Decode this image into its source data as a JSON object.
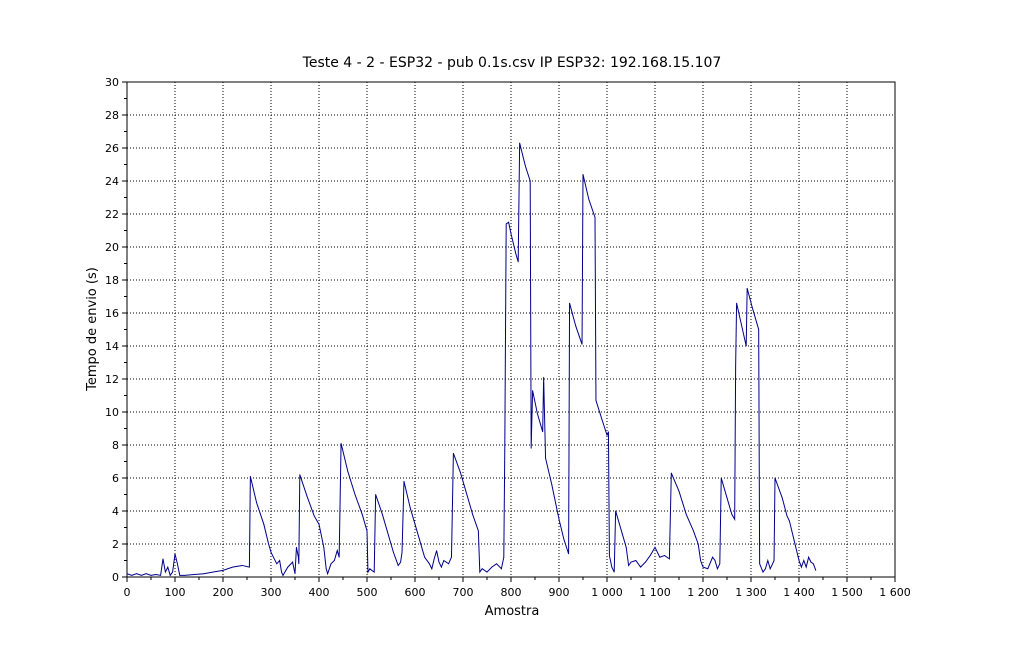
{
  "chart_data": {
    "type": "line",
    "title": "Teste 4 - 2 - ESP32 - pub 0.1s.csv IP ESP32: 192.168.15.107",
    "xlabel": "Amostra",
    "ylabel": "Tempo de envio (s)",
    "xlim": [
      0,
      1600
    ],
    "ylim": [
      0,
      30
    ],
    "x_ticks": [
      0,
      100,
      200,
      300,
      400,
      500,
      600,
      700,
      800,
      900,
      1000,
      1100,
      1200,
      1300,
      1400,
      1500,
      1600
    ],
    "x_tick_labels": [
      "0",
      "100",
      "200",
      "300",
      "400",
      "500",
      "600",
      "700",
      "800",
      "900",
      "1 000",
      "1 100",
      "1 200",
      "1 300",
      "1 400",
      "1 500",
      "1 600"
    ],
    "y_ticks": [
      0,
      2,
      4,
      6,
      8,
      10,
      12,
      14,
      16,
      18,
      20,
      22,
      24,
      26,
      28,
      30
    ],
    "grid": true,
    "line_color": "#00008b",
    "series": [
      {
        "points": [
          [
            0,
            0.2
          ],
          [
            10,
            0.1
          ],
          [
            20,
            0.2
          ],
          [
            30,
            0.1
          ],
          [
            40,
            0.2
          ],
          [
            50,
            0.1
          ],
          [
            60,
            0.15
          ],
          [
            70,
            0.1
          ],
          [
            75,
            1.1
          ],
          [
            80,
            0.3
          ],
          [
            85,
            0.6
          ],
          [
            90,
            0.1
          ],
          [
            95,
            0.3
          ],
          [
            100,
            1.4
          ],
          [
            105,
            0.8
          ],
          [
            110,
            0.1
          ],
          [
            120,
            0.1
          ],
          [
            140,
            0.15
          ],
          [
            160,
            0.2
          ],
          [
            180,
            0.3
          ],
          [
            200,
            0.4
          ],
          [
            220,
            0.6
          ],
          [
            240,
            0.7
          ],
          [
            255,
            0.6
          ],
          [
            257,
            6.1
          ],
          [
            270,
            4.5
          ],
          [
            285,
            3.2
          ],
          [
            295,
            2.0
          ],
          [
            300,
            1.5
          ],
          [
            305,
            1.2
          ],
          [
            312,
            0.8
          ],
          [
            318,
            1.0
          ],
          [
            322,
            0.3
          ],
          [
            325,
            0.1
          ],
          [
            335,
            0.6
          ],
          [
            345,
            0.9
          ],
          [
            350,
            0.2
          ],
          [
            353,
            1.8
          ],
          [
            357,
            1.2
          ],
          [
            358,
            0.8
          ],
          [
            360,
            6.2
          ],
          [
            375,
            4.9
          ],
          [
            390,
            3.7
          ],
          [
            400,
            3.2
          ],
          [
            410,
            1.8
          ],
          [
            415,
            0.5
          ],
          [
            418,
            0.2
          ],
          [
            425,
            0.8
          ],
          [
            432,
            1.0
          ],
          [
            438,
            1.6
          ],
          [
            442,
            1.2
          ],
          [
            446,
            8.1
          ],
          [
            460,
            6.4
          ],
          [
            475,
            5.0
          ],
          [
            490,
            3.8
          ],
          [
            500,
            2.8
          ],
          [
            502,
            0.3
          ],
          [
            506,
            0.5
          ],
          [
            510,
            0.4
          ],
          [
            515,
            0.3
          ],
          [
            518,
            5.0
          ],
          [
            532,
            3.8
          ],
          [
            545,
            2.5
          ],
          [
            555,
            1.5
          ],
          [
            565,
            0.7
          ],
          [
            570,
            0.9
          ],
          [
            573,
            1.5
          ],
          [
            577,
            5.8
          ],
          [
            590,
            4.2
          ],
          [
            600,
            3.2
          ],
          [
            610,
            2.2
          ],
          [
            620,
            1.2
          ],
          [
            630,
            0.8
          ],
          [
            635,
            0.5
          ],
          [
            640,
            1.1
          ],
          [
            645,
            1.6
          ],
          [
            650,
            0.9
          ],
          [
            655,
            0.6
          ],
          [
            660,
            1.0
          ],
          [
            670,
            0.8
          ],
          [
            676,
            1.2
          ],
          [
            680,
            7.5
          ],
          [
            695,
            6.3
          ],
          [
            708,
            5.0
          ],
          [
            720,
            3.8
          ],
          [
            732,
            2.8
          ],
          [
            735,
            0.3
          ],
          [
            740,
            0.5
          ],
          [
            750,
            0.3
          ],
          [
            760,
            0.6
          ],
          [
            770,
            0.8
          ],
          [
            780,
            0.5
          ],
          [
            785,
            1.2
          ],
          [
            787,
            7.6
          ],
          [
            790,
            21.4
          ],
          [
            795,
            21.5
          ],
          [
            800,
            20.8
          ],
          [
            810,
            19.6
          ],
          [
            815,
            19.1
          ],
          [
            818,
            26.3
          ],
          [
            830,
            24.9
          ],
          [
            840,
            24.0
          ],
          [
            842,
            7.8
          ],
          [
            845,
            11.3
          ],
          [
            855,
            9.9
          ],
          [
            866,
            8.8
          ],
          [
            868,
            12.1
          ],
          [
            872,
            7.2
          ],
          [
            885,
            5.6
          ],
          [
            900,
            3.5
          ],
          [
            910,
            2.3
          ],
          [
            920,
            1.4
          ],
          [
            922,
            16.6
          ],
          [
            935,
            15.2
          ],
          [
            948,
            14.1
          ],
          [
            950,
            24.4
          ],
          [
            962,
            22.9
          ],
          [
            975,
            21.8
          ],
          [
            977,
            10.7
          ],
          [
            990,
            9.5
          ],
          [
            1000,
            8.6
          ],
          [
            1003,
            8.8
          ],
          [
            1005,
            1.3
          ],
          [
            1010,
            0.6
          ],
          [
            1015,
            0.3
          ],
          [
            1018,
            4.0
          ],
          [
            1030,
            2.8
          ],
          [
            1040,
            1.8
          ],
          [
            1045,
            0.7
          ],
          [
            1050,
            0.9
          ],
          [
            1060,
            1.0
          ],
          [
            1070,
            0.6
          ],
          [
            1080,
            0.9
          ],
          [
            1090,
            1.3
          ],
          [
            1100,
            1.8
          ],
          [
            1110,
            1.2
          ],
          [
            1120,
            1.3
          ],
          [
            1130,
            1.1
          ],
          [
            1134,
            6.3
          ],
          [
            1150,
            5.2
          ],
          [
            1165,
            3.8
          ],
          [
            1180,
            2.8
          ],
          [
            1190,
            2.0
          ],
          [
            1195,
            1.0
          ],
          [
            1200,
            0.6
          ],
          [
            1210,
            0.5
          ],
          [
            1220,
            1.2
          ],
          [
            1225,
            1.0
          ],
          [
            1230,
            0.5
          ],
          [
            1235,
            0.8
          ],
          [
            1238,
            6.0
          ],
          [
            1250,
            4.8
          ],
          [
            1260,
            3.8
          ],
          [
            1266,
            3.5
          ],
          [
            1268,
            12.8
          ],
          [
            1270,
            16.6
          ],
          [
            1280,
            15.3
          ],
          [
            1290,
            14.0
          ],
          [
            1292,
            17.5
          ],
          [
            1302,
            16.4
          ],
          [
            1316,
            15.0
          ],
          [
            1318,
            0.8
          ],
          [
            1325,
            0.3
          ],
          [
            1330,
            0.5
          ],
          [
            1335,
            1.0
          ],
          [
            1340,
            0.5
          ],
          [
            1345,
            0.8
          ],
          [
            1348,
            1.0
          ],
          [
            1350,
            6.0
          ],
          [
            1365,
            4.8
          ],
          [
            1375,
            3.7
          ],
          [
            1380,
            3.4
          ],
          [
            1390,
            2.2
          ],
          [
            1400,
            1.0
          ],
          [
            1405,
            0.6
          ],
          [
            1410,
            1.0
          ],
          [
            1415,
            0.6
          ],
          [
            1420,
            1.2
          ],
          [
            1425,
            0.9
          ],
          [
            1430,
            0.8
          ],
          [
            1435,
            0.4
          ]
        ]
      }
    ]
  }
}
